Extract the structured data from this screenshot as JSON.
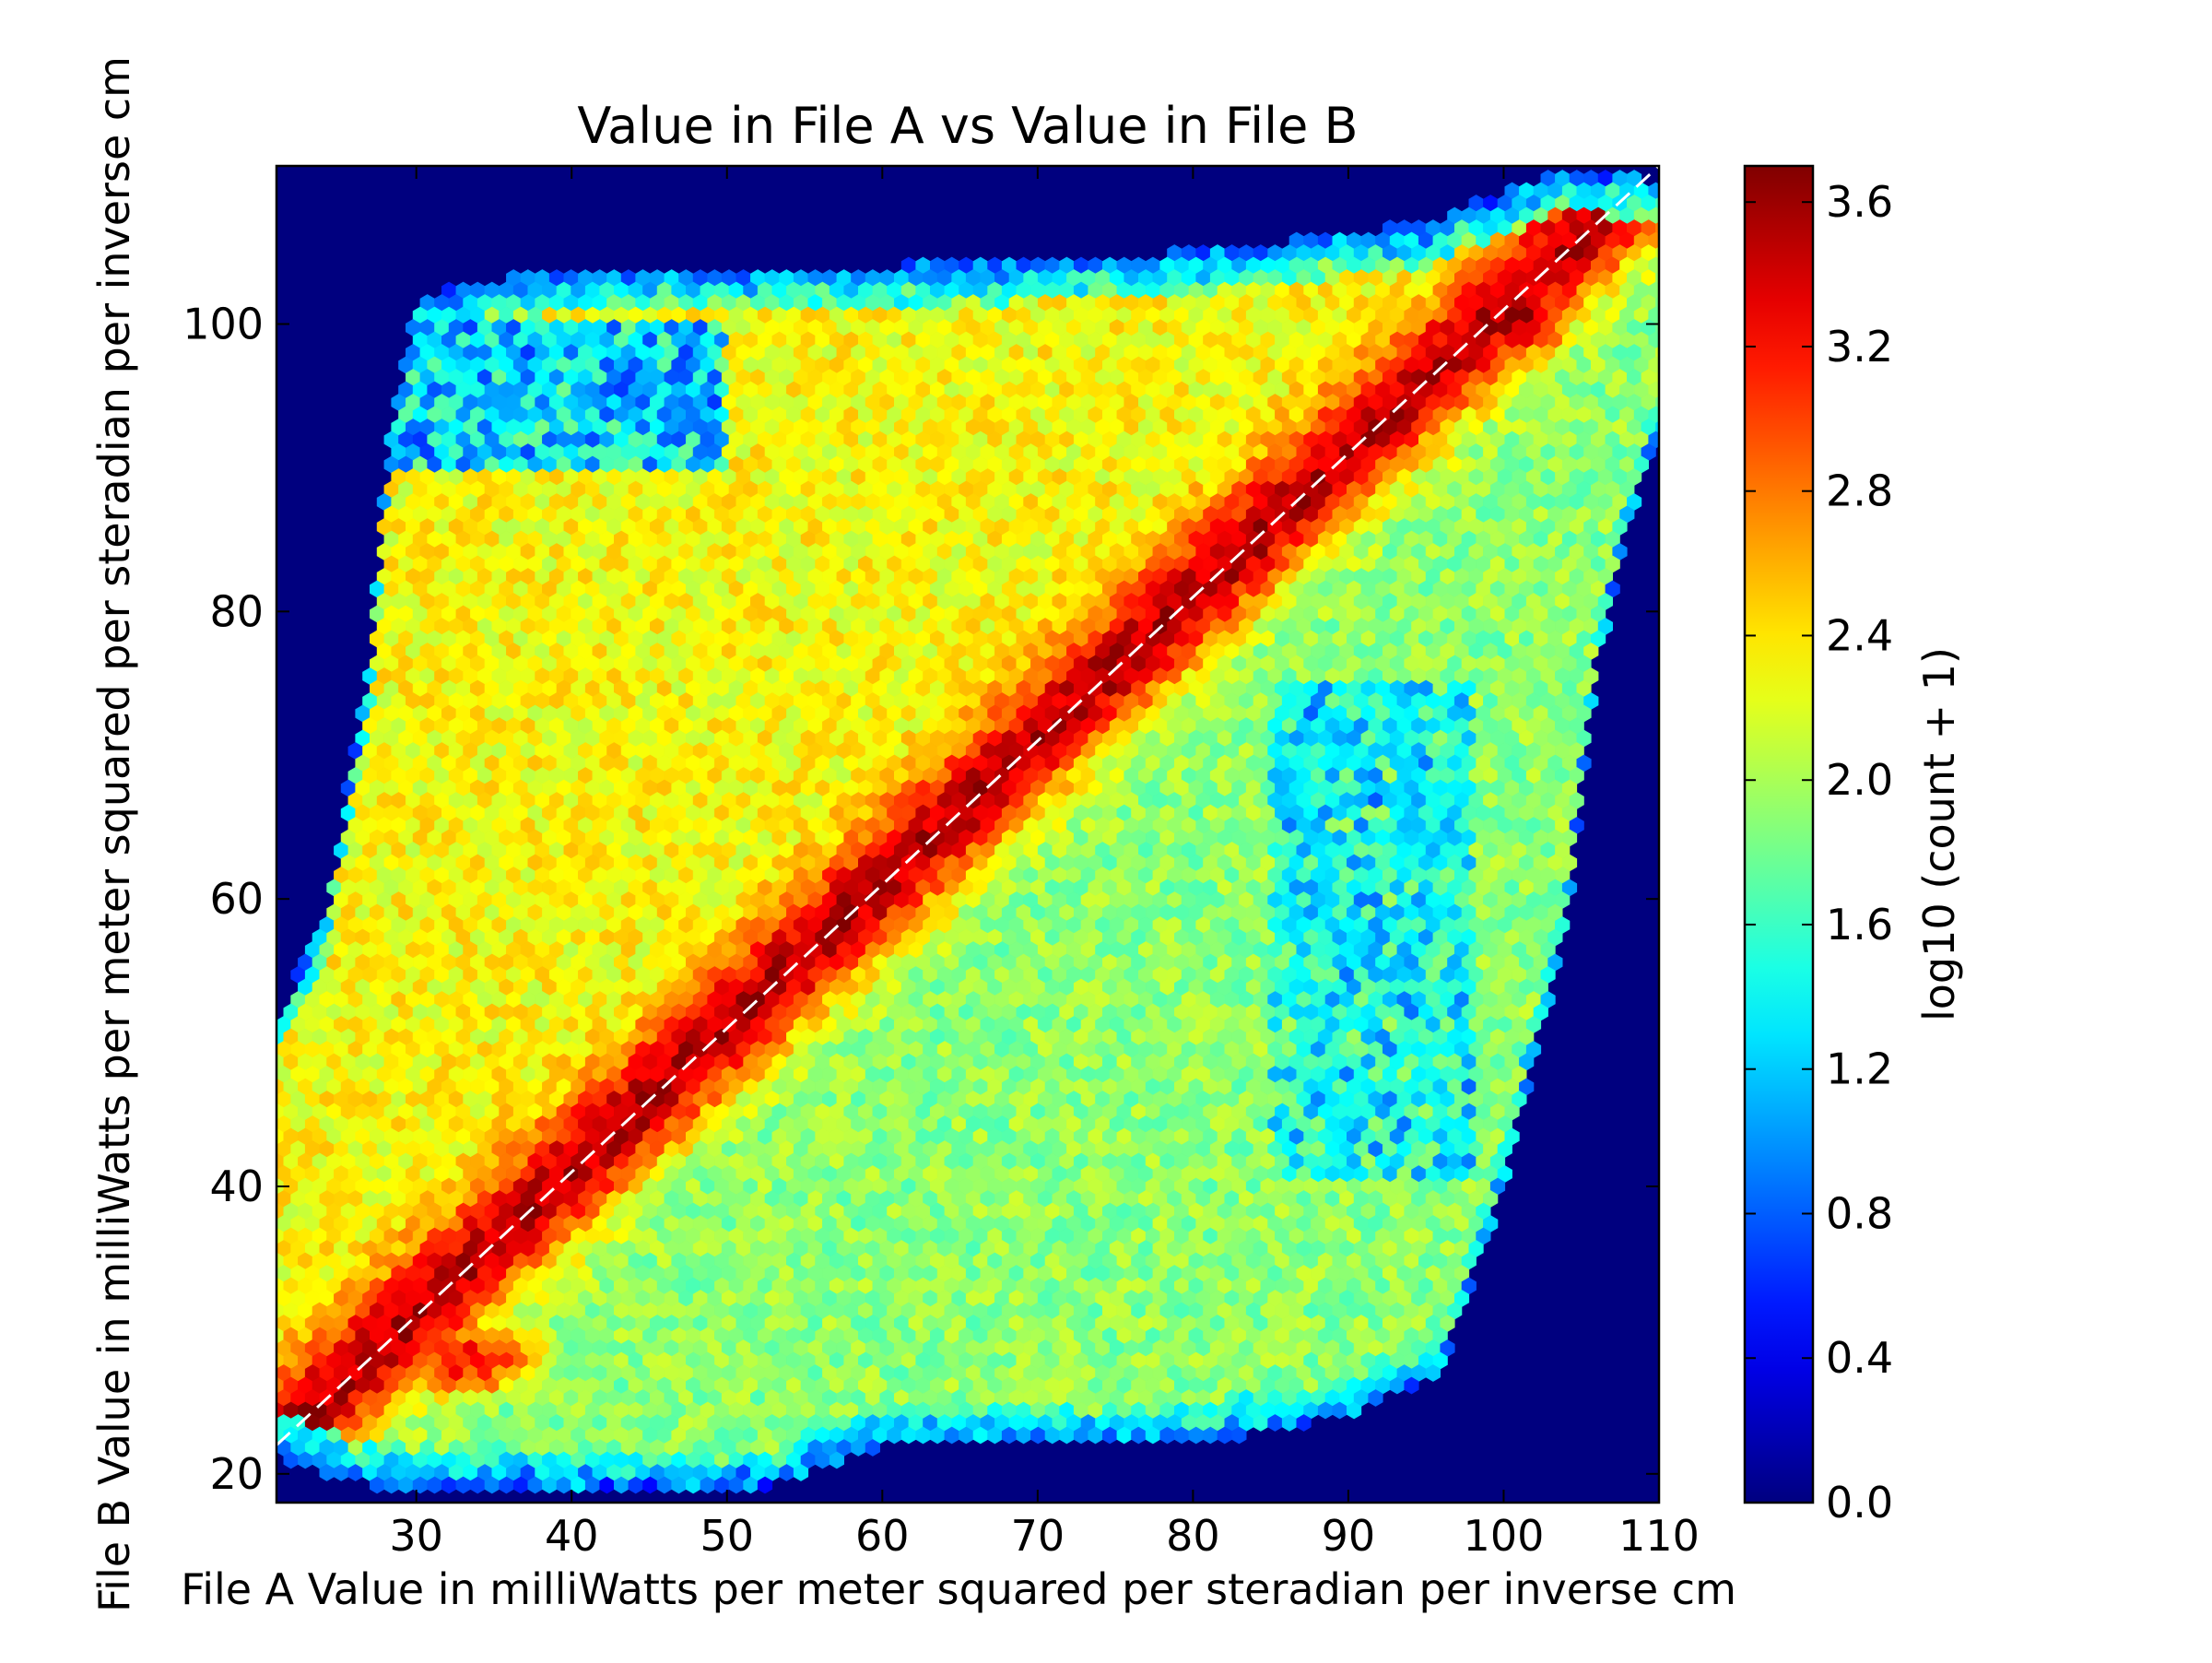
{
  "chart_data": {
    "type": "heatmap",
    "subtype": "hexbin",
    "title": "Value in File A vs Value in File B",
    "xlabel": "File A Value in milliWatts per meter squared per steradian per inverse cm",
    "ylabel": "File B Value in milliWatts per meter squared per steradian per inverse cm",
    "xlim": [
      21,
      110
    ],
    "ylim": [
      18,
      111
    ],
    "x_ticks": [
      30,
      40,
      50,
      60,
      70,
      80,
      90,
      100,
      110
    ],
    "x_tick_labels": [
      "30",
      "40",
      "50",
      "60",
      "70",
      "80",
      "90",
      "100",
      "110"
    ],
    "y_ticks": [
      20,
      40,
      60,
      80,
      100
    ],
    "y_tick_labels": [
      "20",
      "40",
      "60",
      "80",
      "100"
    ],
    "colorbar": {
      "label": "log10 (count + 1)",
      "colormap": "jet",
      "range": [
        0.0,
        3.7
      ],
      "ticks": [
        0.0,
        0.4,
        0.8,
        1.2,
        1.6,
        2.0,
        2.4,
        2.8,
        3.2,
        3.6
      ],
      "tick_labels": [
        "0.0",
        "0.4",
        "0.8",
        "1.2",
        "1.6",
        "2.0",
        "2.4",
        "2.8",
        "3.2",
        "3.6"
      ]
    },
    "background_value": 0.0,
    "reference_line": {
      "style": "dashed",
      "color": "#ffffff",
      "from": [
        21,
        22
      ],
      "to": [
        110,
        111
      ]
    },
    "density_features": {
      "diagonal_ridge_peak": 3.5,
      "diagonal_ridge_width": 2.5,
      "upper_right_hotspot": {
        "center": [
          101,
          101
        ],
        "peak": 3.6
      },
      "lower_left_hotspot": {
        "center": [
          33,
          28
        ],
        "peak": 3.2
      },
      "general_level_upper_left": 2.3,
      "general_level_lower_right": 1.9,
      "sparse_region_upper_left": {
        "x": [
          28,
          50
        ],
        "y": [
          90,
          100
        ],
        "level": 0.9
      },
      "sparse_region_right": {
        "x": [
          85,
          98
        ],
        "y": [
          40,
          75
        ],
        "level": 1.0
      }
    },
    "grid": false,
    "legend": "none"
  }
}
